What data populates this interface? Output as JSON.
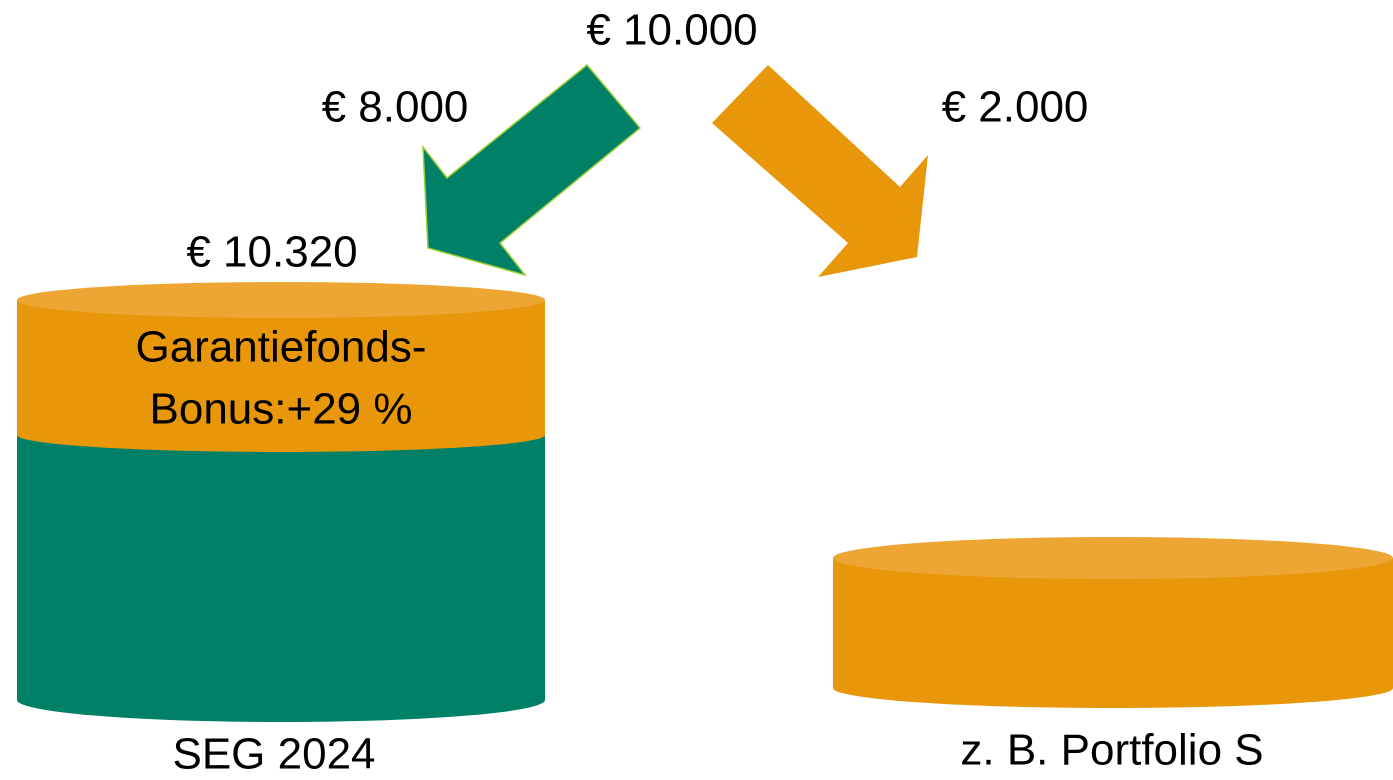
{
  "top_amount": "€ 10.000",
  "left_branch": {
    "amount": "€ 8.000",
    "result": "€ 10.320",
    "bonus_lines": [
      "Garantiefonds-",
      "Bonus:+29 %"
    ],
    "label": "SEG 2024"
  },
  "right_branch": {
    "amount": "€ 2.000",
    "label": "z. B. Portfolio S"
  }
}
